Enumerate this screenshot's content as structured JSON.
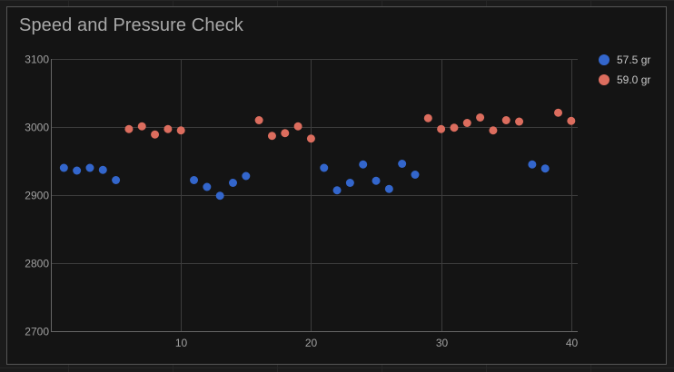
{
  "chart_data": {
    "type": "scatter",
    "title": "Speed and Pressure Check",
    "xlabel": "",
    "ylabel": "",
    "xlim": [
      0,
      40.5
    ],
    "ylim": [
      2700,
      3100
    ],
    "xticks": [
      10,
      20,
      30,
      40
    ],
    "yticks": [
      2700,
      2800,
      2900,
      3000,
      3100
    ],
    "grid": true,
    "legend_position": "right",
    "series": [
      {
        "name": "57.5 gr",
        "color": "#3366cc",
        "points": [
          [
            1,
            2940
          ],
          [
            2,
            2936
          ],
          [
            3,
            2940
          ],
          [
            4,
            2937
          ],
          [
            5,
            2922
          ],
          [
            11,
            2922
          ],
          [
            12,
            2912
          ],
          [
            13,
            2899
          ],
          [
            14,
            2918
          ],
          [
            15,
            2928
          ],
          [
            21,
            2940
          ],
          [
            22,
            2907
          ],
          [
            23,
            2918
          ],
          [
            24,
            2945
          ],
          [
            25,
            2921
          ],
          [
            26,
            2909
          ],
          [
            27,
            2946
          ],
          [
            28,
            2930
          ],
          [
            37,
            2945
          ],
          [
            38,
            2939
          ]
        ]
      },
      {
        "name": "59.0 gr",
        "color": "#dc6d5e",
        "points": [
          [
            6,
            2997
          ],
          [
            7,
            3001
          ],
          [
            8,
            2989
          ],
          [
            9,
            2997
          ],
          [
            10,
            2995
          ],
          [
            16,
            3010
          ],
          [
            17,
            2987
          ],
          [
            18,
            2991
          ],
          [
            19,
            3001
          ],
          [
            20,
            2983
          ],
          [
            29,
            3013
          ],
          [
            30,
            2997
          ],
          [
            31,
            2999
          ],
          [
            32,
            3006
          ],
          [
            33,
            3014
          ],
          [
            34,
            2995
          ],
          [
            35,
            3010
          ],
          [
            36,
            3008
          ],
          [
            39,
            3021
          ],
          [
            40,
            3009
          ]
        ]
      }
    ]
  }
}
